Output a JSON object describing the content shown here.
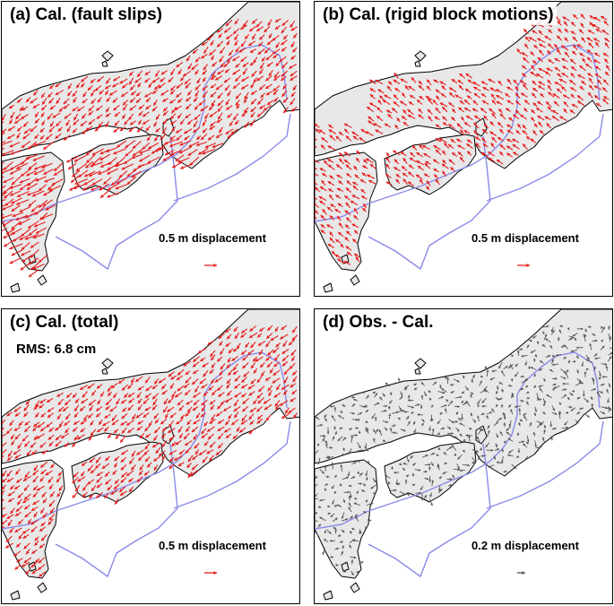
{
  "colors": {
    "land": "#e8e8e8",
    "coast": "#000000",
    "boundary": "#8a8ae8",
    "calc_arrow": "#e61e1e",
    "residual_arrow": "#555555"
  },
  "panels": [
    {
      "id": "a",
      "title": "(a) Cal. (fault slips)",
      "scale_label": "0.5 m displacement",
      "arrow_color": "calc_arrow",
      "mode": "slip",
      "rms": ""
    },
    {
      "id": "b",
      "title": "(b) Cal. (rigid block motions)",
      "scale_label": "0.5 m displacement",
      "arrow_color": "calc_arrow",
      "mode": "rigid",
      "rms": ""
    },
    {
      "id": "c",
      "title": "(c) Cal. (total)",
      "scale_label": "0.5 m displacement",
      "arrow_color": "calc_arrow",
      "mode": "total",
      "rms": "RMS: 6.8 cm"
    },
    {
      "id": "d",
      "title": "(d) Obs. - Cal.",
      "scale_label": "0.2 m displacement",
      "arrow_color": "residual_arrow",
      "mode": "residual",
      "rms": ""
    }
  ]
}
